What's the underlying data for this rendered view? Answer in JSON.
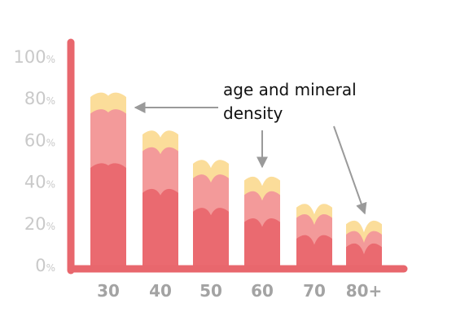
{
  "chart_data": {
    "type": "bar",
    "title": "",
    "xlabel": "",
    "ylabel": "",
    "categories": [
      "30",
      "40",
      "50",
      "60",
      "70",
      "80+"
    ],
    "series": [
      {
        "values": [
          48,
          36,
          27,
          22,
          14,
          10
        ]
      },
      {
        "values": [
          74,
          56,
          43,
          35,
          24,
          16
        ]
      },
      {
        "values": [
          82,
          64,
          50,
          42,
          29,
          21
        ]
      }
    ],
    "ylim": [
      0,
      100
    ],
    "yticks": [
      {
        "num": "100",
        "unit": "%"
      },
      {
        "num": "80",
        "unit": "%"
      },
      {
        "num": "60",
        "unit": "%"
      },
      {
        "num": "40",
        "unit": "%"
      },
      {
        "num": "20",
        "unit": "%"
      },
      {
        "num": "0",
        "unit": "%"
      }
    ],
    "annotation": "age and mineral density",
    "colors": {
      "layer1": "#ea6a70",
      "layer2": "#f39a9a",
      "layer3": "#fbdd9a",
      "axis": "#e8676d"
    }
  }
}
